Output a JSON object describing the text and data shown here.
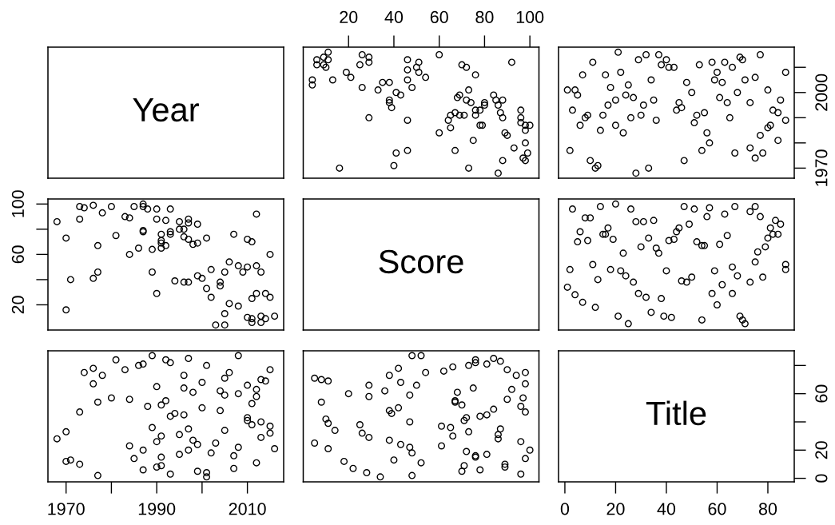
{
  "chart_data": [
    {
      "type": "other",
      "title": "Year"
    },
    {
      "type": "scatter",
      "marker": "circle",
      "tick_labels": "x",
      "xlim": [
        0,
        104
      ],
      "xticks": [
        20,
        40,
        60,
        80,
        100
      ],
      "ylim": [
        1966,
        2018
      ],
      "x": [
        11,
        6,
        9,
        11,
        6,
        9,
        10,
        4,
        4,
        13,
        26,
        29,
        29,
        25,
        19,
        21,
        26,
        33,
        35,
        38,
        46,
        46,
        51,
        50,
        51,
        54,
        46,
        48,
        41,
        43,
        38,
        38,
        39,
        29,
        46,
        60,
        70,
        72,
        76,
        92,
        73,
        69,
        68,
        72,
        74,
        80,
        80,
        76,
        78,
        84,
        85,
        88,
        86,
        87,
        88,
        67,
        65,
        64,
        69,
        71,
        76,
        65,
        78,
        79,
        60,
        96,
        96,
        96,
        98,
        100,
        98,
        89,
        90,
        75,
        93,
        98,
        99,
        97,
        98,
        67,
        46,
        41,
        88,
        16,
        40,
        73,
        86
      ],
      "series": [
        {
          "color": "#000000",
          "values": [
            2016,
            2013,
            2014,
            2013,
            2011,
            2011,
            2010,
            2005,
            2003,
            2005,
            2015,
            2014,
            2012,
            2011,
            2008,
            2006,
            2002,
            2001,
            2004,
            2004,
            2013,
            2009,
            2012,
            2010,
            2008,
            2006,
            2005,
            2002,
            2000,
            1999,
            1997,
            1996,
            1994,
            1990,
            1989,
            2015,
            2011,
            2010,
            2007,
            2012,
            2001,
            1999,
            1998,
            1997,
            1996,
            1996,
            1995,
            1993,
            1993,
            1999,
            1997,
            1997,
            1995,
            1992,
            1990,
            1992,
            1991,
            1989,
            1991,
            1991,
            1991,
            1986,
            1987,
            1987,
            1984,
            1993,
            1990,
            1988,
            1987,
            1987,
            1985,
            1984,
            1983,
            1981,
            1978,
            1980,
            1976,
            1974,
            1973,
            1977,
            1977,
            1976,
            1973,
            1970,
            1971,
            1970,
            1968
          ]
        }
      ]
    },
    {
      "type": "scatter",
      "marker": "circle",
      "tick_labels": "y",
      "xlim": [
        -2.5,
        90.4
      ],
      "ylim": [
        1966,
        2018
      ],
      "yticks": [
        1970,
        {
          "value": 1980,
          "label": null
        },
        {
          "value": 1990,
          "label": null
        },
        2000,
        {
          "value": 2010,
          "label": null
        }
      ],
      "x": [
        21,
        32,
        37,
        77,
        29,
        40,
        38,
        41,
        43,
        69,
        70,
        11,
        53,
        58,
        63,
        66,
        60,
        87,
        22,
        7,
        16,
        34,
        48,
        59,
        62,
        71,
        75,
        80,
        1,
        4,
        5,
        18,
        25,
        24,
        27,
        20,
        17,
        31,
        35,
        50,
        61,
        64,
        68,
        73,
        85,
        45,
        46,
        44,
        3,
        8,
        9,
        15,
        26,
        30,
        36,
        52,
        55,
        51,
        65,
        82,
        84,
        87,
        6,
        14,
        20,
        23,
        56,
        57,
        54,
        80,
        81,
        77,
        84,
        2,
        10,
        13,
        12,
        28,
        33,
        47,
        67,
        73,
        75,
        78
      ],
      "series": [
        {
          "color": "#000000",
          "values": [
            2016,
            2015,
            2015,
            2015,
            2013,
            2013,
            2011,
            2010,
            2010,
            2014,
            2013,
            2012,
            2011,
            2012,
            2012,
            2010,
            2008,
            2008,
            2008,
            2007,
            2007,
            2005,
            2004,
            2005,
            2004,
            2005,
            2006,
            2001,
            2001,
            2001,
            1999,
            2002,
            2003,
            1999,
            1998,
            1997,
            1995,
            1995,
            1997,
            2000,
            1998,
            1996,
            2000,
            1996,
            1997,
            1996,
            1994,
            1993,
            1993,
            1990,
            1991,
            1991,
            1990,
            1991,
            1989,
            1991,
            1992,
            1988,
            1990,
            1993,
            1992,
            1989,
            1987,
            1985,
            1987,
            1984,
            1984,
            1980,
            1977,
            1986,
            1987,
            1983,
            1981,
            1977,
            1973,
            1971,
            1970,
            1968,
            1970,
            1973,
            1976,
            1978,
            1974,
            1976
          ]
        }
      ]
    },
    {
      "type": "scatter",
      "marker": "circle",
      "tick_labels": "y",
      "xlim": [
        1966,
        2018
      ],
      "ylim": [
        0,
        104
      ],
      "yticks": [
        20,
        {
          "value": 40,
          "label": null
        },
        60,
        {
          "value": 80,
          "label": null
        },
        100
      ],
      "x": [
        2016,
        2013,
        2014,
        2013,
        2011,
        2011,
        2010,
        2005,
        2003,
        2005,
        2015,
        2014,
        2012,
        2011,
        2008,
        2006,
        2002,
        2001,
        2004,
        2004,
        2013,
        2009,
        2012,
        2010,
        2008,
        2006,
        2005,
        2002,
        2000,
        1999,
        1997,
        1996,
        1994,
        1990,
        1989,
        2015,
        2011,
        2010,
        2007,
        2012,
        2001,
        1999,
        1998,
        1997,
        1996,
        1996,
        1995,
        1993,
        1993,
        1999,
        1997,
        1997,
        1995,
        1992,
        1990,
        1992,
        1991,
        1989,
        1991,
        1991,
        1991,
        1986,
        1987,
        1987,
        1984,
        1993,
        1990,
        1988,
        1987,
        1987,
        1985,
        1984,
        1983,
        1981,
        1978,
        1980,
        1976,
        1974,
        1973,
        1977,
        1977,
        1976,
        1973,
        1970,
        1971,
        1970,
        1968
      ],
      "series": [
        {
          "color": "#000000",
          "values": [
            11,
            6,
            9,
            11,
            6,
            9,
            10,
            4,
            4,
            13,
            26,
            29,
            29,
            25,
            19,
            21,
            26,
            33,
            35,
            38,
            46,
            46,
            51,
            50,
            51,
            54,
            46,
            48,
            41,
            43,
            38,
            38,
            39,
            29,
            46,
            60,
            70,
            72,
            76,
            92,
            73,
            69,
            68,
            72,
            74,
            80,
            80,
            76,
            78,
            84,
            85,
            88,
            86,
            87,
            88,
            67,
            65,
            64,
            69,
            71,
            76,
            65,
            78,
            79,
            60,
            96,
            96,
            96,
            98,
            100,
            98,
            89,
            90,
            75,
            93,
            98,
            99,
            97,
            98,
            67,
            46,
            41,
            88,
            16,
            40,
            73,
            86
          ]
        }
      ]
    },
    {
      "type": "other",
      "title": "Score"
    },
    {
      "type": "scatter",
      "marker": "circle",
      "tick_labels": false,
      "xlim": [
        -2.5,
        90.4
      ],
      "ylim": [
        0,
        104
      ],
      "x": [
        3,
        14,
        20,
        26,
        47,
        51,
        57,
        67,
        75,
        73,
        77,
        63,
        56,
        8,
        10,
        28,
        31,
        35,
        49,
        83,
        85,
        45,
        44,
        43,
        41,
        6,
        17,
        15,
        16,
        19,
        5,
        9,
        33,
        30,
        36,
        37,
        52,
        54,
        55,
        61,
        64,
        81,
        82,
        84,
        80,
        79,
        76,
        75,
        23,
        2,
        11,
        13,
        18,
        22,
        24,
        27,
        40,
        46,
        48,
        50,
        59,
        66,
        68,
        73,
        78,
        87,
        87,
        1,
        4,
        7,
        12,
        21,
        25,
        29,
        32,
        38,
        34,
        39,
        42,
        54,
        58,
        62,
        66,
        60,
        69,
        70,
        71
      ],
      "series": [
        {
          "color": "#000000",
          "values": [
            96,
            98,
            100,
            96,
            98,
            96,
            97,
            98,
            98,
            94,
            90,
            92,
            90,
            89,
            89,
            86,
            86,
            87,
            84,
            87,
            84,
            81,
            78,
            72,
            71,
            78,
            81,
            76,
            76,
            72,
            70,
            71,
            73,
            66,
            65,
            61,
            70,
            67,
            67,
            68,
            75,
            81,
            76,
            76,
            73,
            66,
            62,
            54,
            61,
            48,
            52,
            40,
            48,
            47,
            43,
            38,
            47,
            39,
            38,
            42,
            47,
            50,
            43,
            38,
            42,
            52,
            48,
            34,
            28,
            22,
            18,
            11,
            5,
            29,
            26,
            25,
            14,
            11,
            10,
            8,
            29,
            36,
            29,
            20,
            11,
            8,
            5
          ]
        }
      ]
    },
    {
      "type": "scatter",
      "marker": "circle",
      "tick_labels": "x",
      "xlim": [
        1966,
        2018
      ],
      "xticks": [
        1970,
        {
          "value": 1980,
          "label": null
        },
        1990,
        {
          "value": 2000,
          "label": null
        },
        2010
      ],
      "ylim": [
        -2.5,
        90.4
      ],
      "x": [
        2016,
        2015,
        2015,
        2015,
        2013,
        2013,
        2011,
        2010,
        2010,
        2014,
        2013,
        2012,
        2011,
        2012,
        2012,
        2010,
        2008,
        2008,
        2008,
        2007,
        2007,
        2005,
        2004,
        2005,
        2004,
        2005,
        2006,
        2001,
        2001,
        2001,
        1999,
        2002,
        2003,
        1999,
        1998,
        1997,
        1995,
        1995,
        1997,
        2000,
        1998,
        1996,
        2000,
        1996,
        1997,
        1996,
        1994,
        1993,
        1993,
        1990,
        1991,
        1991,
        1990,
        1991,
        1989,
        1991,
        1992,
        1988,
        1990,
        1993,
        1992,
        1989,
        1987,
        1985,
        1987,
        1984,
        1984,
        1980,
        1977,
        1986,
        1987,
        1983,
        1981,
        1977,
        1973,
        1971,
        1970,
        1968,
        1970,
        1973,
        1976,
        1978,
        1974,
        1976
      ],
      "series": [
        {
          "color": "#000000",
          "values": [
            21,
            32,
            37,
            77,
            29,
            40,
            38,
            41,
            43,
            69,
            70,
            11,
            53,
            58,
            63,
            66,
            60,
            87,
            22,
            7,
            16,
            34,
            48,
            59,
            62,
            71,
            75,
            80,
            1,
            4,
            5,
            18,
            25,
            24,
            27,
            20,
            17,
            31,
            35,
            50,
            61,
            64,
            68,
            73,
            85,
            45,
            46,
            44,
            3,
            8,
            9,
            15,
            26,
            30,
            36,
            52,
            55,
            51,
            65,
            82,
            84,
            87,
            6,
            14,
            20,
            23,
            56,
            57,
            54,
            80,
            81,
            77,
            84,
            2,
            10,
            13,
            12,
            28,
            33,
            47,
            67,
            73,
            75,
            78
          ]
        }
      ]
    },
    {
      "type": "scatter",
      "marker": "circle",
      "tick_labels": false,
      "xlim": [
        0,
        104
      ],
      "ylim": [
        -2.5,
        90.4
      ],
      "x": [
        96,
        98,
        100,
        96,
        98,
        96,
        97,
        98,
        98,
        94,
        90,
        92,
        90,
        89,
        89,
        86,
        86,
        87,
        84,
        87,
        84,
        81,
        78,
        72,
        71,
        78,
        81,
        76,
        76,
        72,
        70,
        71,
        73,
        66,
        65,
        61,
        70,
        67,
        67,
        68,
        75,
        81,
        76,
        76,
        73,
        66,
        62,
        54,
        61,
        48,
        52,
        40,
        48,
        47,
        43,
        38,
        47,
        39,
        38,
        42,
        47,
        50,
        43,
        38,
        42,
        52,
        48,
        34,
        28,
        22,
        18,
        11,
        5,
        29,
        26,
        25,
        14,
        11,
        10,
        8,
        29,
        36,
        29,
        20,
        11,
        8,
        5
      ],
      "series": [
        {
          "color": "#000000",
          "values": [
            3,
            14,
            20,
            26,
            47,
            51,
            57,
            67,
            75,
            73,
            77,
            63,
            56,
            8,
            10,
            28,
            31,
            35,
            49,
            83,
            85,
            45,
            44,
            43,
            41,
            6,
            17,
            15,
            16,
            19,
            5,
            9,
            33,
            30,
            36,
            37,
            52,
            54,
            55,
            61,
            64,
            81,
            82,
            84,
            80,
            79,
            76,
            75,
            23,
            2,
            11,
            13,
            18,
            22,
            24,
            27,
            40,
            46,
            48,
            50,
            59,
            66,
            68,
            73,
            78,
            87,
            87,
            1,
            4,
            7,
            12,
            21,
            25,
            29,
            32,
            38,
            34,
            39,
            42,
            54,
            58,
            62,
            66,
            60,
            69,
            70,
            71
          ]
        }
      ]
    },
    {
      "type": "scatter",
      "title": "Title",
      "xlim": [
        -2.5,
        90.4
      ],
      "xticks": [
        0,
        20,
        40,
        60,
        80
      ],
      "ylim": [
        -2.5,
        90.4
      ],
      "yticks": [
        0,
        20,
        {
          "value": 40,
          "label": null
        },
        60,
        {
          "value": 80,
          "label": null
        }
      ]
    }
  ]
}
